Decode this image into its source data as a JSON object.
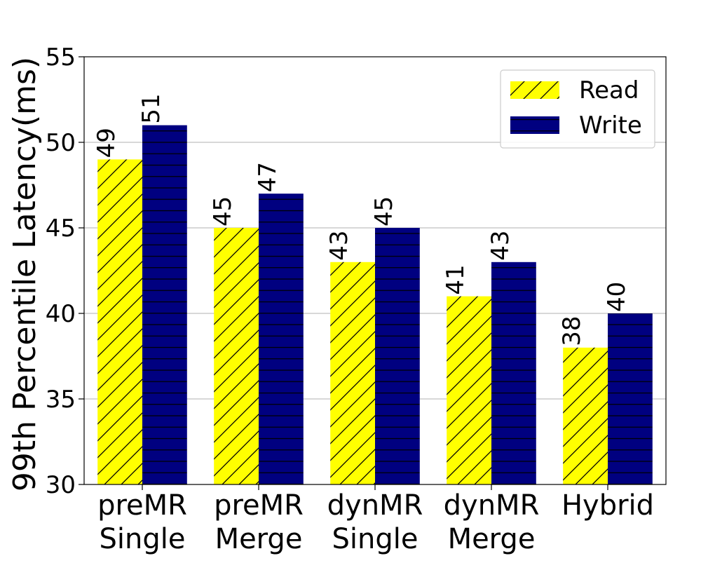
{
  "chart_data": {
    "type": "bar",
    "categories": [
      [
        "preMR",
        "Single"
      ],
      [
        "preMR",
        "Merge"
      ],
      [
        "dynMR",
        "Single"
      ],
      [
        "dynMR",
        "Merge"
      ],
      [
        "Hybrid"
      ]
    ],
    "series": [
      {
        "name": "Read",
        "values": [
          49,
          45,
          43,
          41,
          38
        ],
        "color": "#ffff00",
        "hatch": "diagonal"
      },
      {
        "name": "Write",
        "values": [
          51,
          47,
          45,
          43,
          40
        ],
        "color": "#000080",
        "hatch": "horizontal"
      }
    ],
    "title": "",
    "xlabel": "",
    "ylabel": "99th Percentile Latency(ms)",
    "ylim": [
      30,
      55
    ],
    "yticks": [
      30,
      35,
      40,
      45,
      50,
      55
    ],
    "grid": "y",
    "legend_position": "top-right",
    "data_labels": true
  }
}
